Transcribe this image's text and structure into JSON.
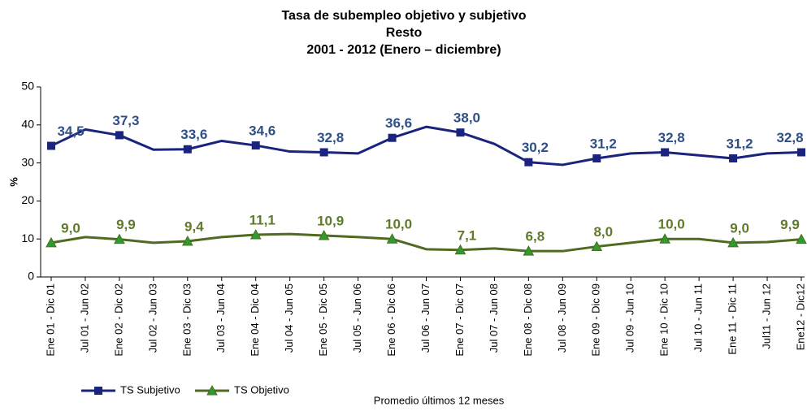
{
  "chart_data": {
    "type": "line",
    "title": "Tasa de subempleo objetivo y subjetivo",
    "subtitle": [
      "Resto",
      "2001 - 2012 (Enero – diciembre)"
    ],
    "ylabel": "%",
    "xlabel": "Promedio últimos 12 meses",
    "categories": [
      "Ene 01 - Dic 01",
      "Jul 01 - Jun 02",
      "Ene 02 - Dic 02",
      "Jul 02 - Jun 03",
      "Ene 03 - Dic 03",
      "Jul 03 - Jun 04",
      "Ene 04 - Dic 04",
      "Jul 04 - Jun 05",
      "Ene 05 - Dic 05",
      "Jul 05 - Jun 06",
      "Ene 06 - Dic 06",
      "Jul 06 - Jun 07",
      "Ene 07 - Dic 07",
      "Jul 07 - Jun 08",
      "Ene 08 - Dic 08",
      "Jul 08 - Jun 09",
      "Ene 09 - Dic 09",
      "Jul 09 - Jun 10",
      "Ene 10 - Dic 10",
      "Jul 10 - Jun 11",
      "Ene 11 - Dic 11",
      "Jul11 - Jun 12",
      "Ene12 - Dic12"
    ],
    "series": [
      {
        "name": "TS Subjetivo",
        "color": "#1a237e",
        "label_color": "#2f4f86",
        "marker": "square",
        "values": [
          34.5,
          38.8,
          37.3,
          33.5,
          33.6,
          35.8,
          34.6,
          33.0,
          32.8,
          32.5,
          36.6,
          39.5,
          38.0,
          35.0,
          30.2,
          29.5,
          31.2,
          32.5,
          32.8,
          32.0,
          31.2,
          32.5,
          32.8
        ],
        "value_labels": [
          "34,5",
          null,
          "37,3",
          null,
          "33,6",
          null,
          "34,6",
          null,
          "32,8",
          null,
          "36,6",
          null,
          "38,0",
          null,
          "30,2",
          null,
          "31,2",
          null,
          "32,8",
          null,
          "31,2",
          null,
          "32,8"
        ]
      },
      {
        "name": "TS Objetivo",
        "color": "#4f6b22",
        "label_color": "#5e7a2a",
        "marker": "triangle",
        "marker_color": "#2e9b2e",
        "values": [
          9.0,
          10.5,
          9.9,
          9.0,
          9.4,
          10.5,
          11.1,
          11.3,
          10.9,
          10.5,
          10.0,
          7.3,
          7.1,
          7.5,
          6.8,
          6.8,
          8.0,
          9.0,
          10.0,
          10.0,
          9.0,
          9.2,
          9.9
        ],
        "value_labels": [
          "9,0",
          null,
          "9,9",
          null,
          "9,4",
          null,
          "11,1",
          null,
          "10,9",
          null,
          "10,0",
          null,
          "7,1",
          null,
          "6,8",
          null,
          "8,0",
          null,
          "10,0",
          null,
          "9,0",
          null,
          "9,9"
        ]
      }
    ],
    "ylim": [
      0,
      50
    ],
    "yticks": [
      0,
      10,
      20,
      30,
      40,
      50
    ],
    "grid": false,
    "legend": "bottom-left"
  }
}
